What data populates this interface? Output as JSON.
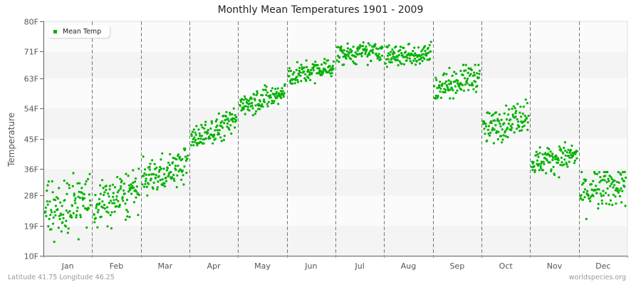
{
  "chart": {
    "title": "Monthly Mean Temperatures 1901 - 2009",
    "ylabel": "Temperature",
    "legend_label": "Mean Temp",
    "footer_left": "Latitude 41.75 Longitude 46.25",
    "footer_right": "worldspecies.org",
    "colors": {
      "point": "#00b200",
      "band_light": "#fbfbfb",
      "band_dark": "#f4f4f4",
      "axis": "#666666",
      "divider": "#777777"
    }
  },
  "chart_data": {
    "type": "scatter",
    "title": "Monthly Mean Temperatures 1901 - 2009",
    "xlabel": "",
    "ylabel": "Temperature",
    "ylim": [
      10,
      80
    ],
    "yticks": [
      "10F",
      "19F",
      "28F",
      "36F",
      "45F",
      "54F",
      "63F",
      "71F",
      "80F"
    ],
    "ytick_values": [
      10,
      19,
      28,
      36,
      45,
      54,
      63,
      71,
      80
    ],
    "categories": [
      "Jan",
      "Feb",
      "Mar",
      "Apr",
      "May",
      "Jun",
      "Jul",
      "Aug",
      "Sep",
      "Oct",
      "Nov",
      "Dec"
    ],
    "legend": {
      "entries": [
        "Mean Temp"
      ],
      "position": "top-left"
    },
    "grid": {
      "horizontal_bands": true,
      "vertical_dashed_month_dividers": true
    },
    "series": [
      {
        "name": "Mean Temp",
        "points_per_month": 109,
        "months": [
          {
            "month": "Jan",
            "mean": 25.0,
            "min": 14,
            "max": 35,
            "trend": 4,
            "spread": 4.2
          },
          {
            "month": "Feb",
            "mean": 27.0,
            "min": 17,
            "max": 36,
            "trend": 6,
            "spread": 3.6
          },
          {
            "month": "Mar",
            "mean": 35.0,
            "min": 28,
            "max": 42,
            "trend": 5,
            "spread": 2.6
          },
          {
            "month": "Apr",
            "mean": 47.5,
            "min": 43,
            "max": 54,
            "trend": 6,
            "spread": 2.0
          },
          {
            "month": "May",
            "mean": 57.0,
            "min": 52,
            "max": 62,
            "trend": 3,
            "spread": 1.9
          },
          {
            "month": "Jun",
            "mean": 65.0,
            "min": 61,
            "max": 70,
            "trend": 3,
            "spread": 1.6
          },
          {
            "month": "Jul",
            "mean": 70.5,
            "min": 67,
            "max": 76,
            "trend": 1,
            "spread": 1.5
          },
          {
            "month": "Aug",
            "mean": 70.0,
            "min": 65,
            "max": 74,
            "trend": 1,
            "spread": 1.7
          },
          {
            "month": "Sep",
            "mean": 62.0,
            "min": 57,
            "max": 67,
            "trend": 4,
            "spread": 2.1
          },
          {
            "month": "Oct",
            "mean": 50.0,
            "min": 43,
            "max": 57,
            "trend": 5,
            "spread": 2.4
          },
          {
            "month": "Nov",
            "mean": 39.0,
            "min": 32,
            "max": 44,
            "trend": 2,
            "spread": 2.0
          },
          {
            "month": "Dec",
            "mean": 30.0,
            "min": 20,
            "max": 35,
            "trend": 3,
            "spread": 3.0
          }
        ]
      }
    ]
  }
}
